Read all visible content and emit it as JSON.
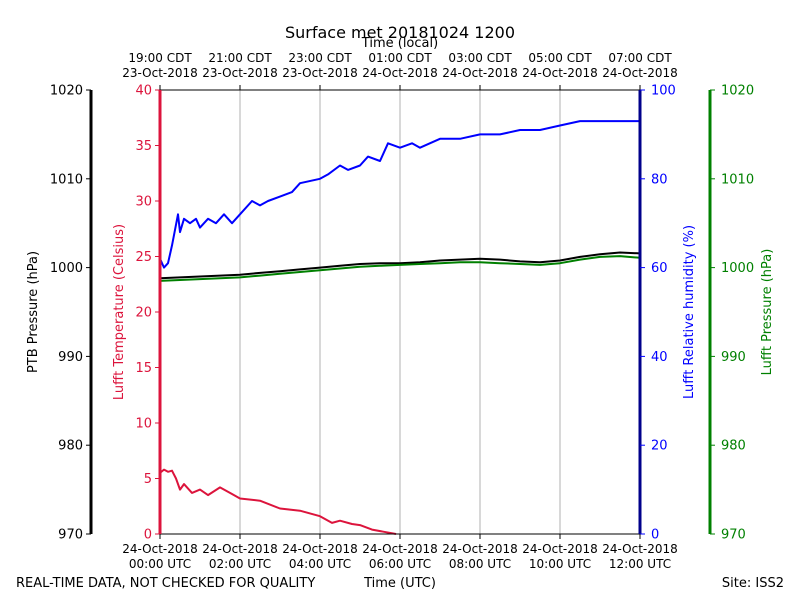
{
  "colors": {
    "ptb": "#000000",
    "temperature": "#dc143c",
    "humidity": "#0000ff",
    "lufft_pressure": "#008000",
    "grid": "#b0b0b0"
  },
  "chart_data": {
    "type": "line",
    "title": "Surface met 20181024 1200",
    "x_top_label": "Time (local)",
    "x_bottom_label": "Time (UTC)",
    "footer_left": "REAL-TIME DATA, NOT CHECKED FOR QUALITY",
    "footer_right": "Site: ISS2",
    "x_range_hours": [
      0,
      12
    ],
    "x_grid_hours": [
      0,
      2,
      4,
      6,
      8,
      10,
      12
    ],
    "x_ticks_utc": [
      {
        "h": 0,
        "date": "24-Oct-2018",
        "time": "00:00 UTC"
      },
      {
        "h": 2,
        "date": "24-Oct-2018",
        "time": "02:00 UTC"
      },
      {
        "h": 4,
        "date": "24-Oct-2018",
        "time": "04:00 UTC"
      },
      {
        "h": 6,
        "date": "24-Oct-2018",
        "time": "06:00 UTC"
      },
      {
        "h": 8,
        "date": "24-Oct-2018",
        "time": "08:00 UTC"
      },
      {
        "h": 10,
        "date": "24-Oct-2018",
        "time": "10:00 UTC"
      },
      {
        "h": 12,
        "date": "24-Oct-2018",
        "time": "12:00 UTC"
      }
    ],
    "x_ticks_local": [
      {
        "h": 0,
        "time": "19:00 CDT",
        "date": "23-Oct-2018"
      },
      {
        "h": 2,
        "time": "21:00 CDT",
        "date": "23-Oct-2018"
      },
      {
        "h": 4,
        "time": "23:00 CDT",
        "date": "23-Oct-2018"
      },
      {
        "h": 6,
        "time": "01:00 CDT",
        "date": "24-Oct-2018"
      },
      {
        "h": 8,
        "time": "03:00 CDT",
        "date": "24-Oct-2018"
      },
      {
        "h": 10,
        "time": "05:00 CDT",
        "date": "24-Oct-2018"
      },
      {
        "h": 12,
        "time": "07:00 CDT",
        "date": "24-Oct-2018"
      }
    ],
    "axes": {
      "ptb_pressure": {
        "label": "PTB Pressure (hPa)",
        "ylim": [
          970,
          1020
        ],
        "ticks": [
          970,
          980,
          990,
          1000,
          1010,
          1020
        ]
      },
      "temperature": {
        "label": "Lufft Temperature (Celsius)",
        "ylim": [
          0,
          40
        ],
        "ticks": [
          0,
          5,
          10,
          15,
          20,
          25,
          30,
          35,
          40
        ]
      },
      "humidity": {
        "label": "Lufft Relative humidity (%)",
        "ylim": [
          0,
          100
        ],
        "ticks": [
          0,
          20,
          40,
          60,
          80,
          100
        ]
      },
      "lufft_pressure": {
        "label": "Lufft Pressure (hPa)",
        "ylim": [
          970,
          1020
        ],
        "ticks": [
          970,
          980,
          990,
          1000,
          1010,
          1020
        ]
      }
    },
    "series": [
      {
        "name": "PTB Pressure",
        "axis": "ptb_pressure",
        "x": [
          0,
          0.5,
          1,
          1.5,
          2,
          2.5,
          3,
          3.5,
          4,
          4.5,
          5,
          5.5,
          6,
          6.5,
          7,
          7.5,
          8,
          8.5,
          9,
          9.5,
          10,
          10.5,
          11,
          11.5,
          12
        ],
        "y": [
          998.8,
          998.9,
          999.0,
          999.1,
          999.2,
          999.4,
          999.6,
          999.8,
          1000.0,
          1000.2,
          1000.4,
          1000.5,
          1000.5,
          1000.6,
          1000.8,
          1000.9,
          1001.0,
          1000.9,
          1000.7,
          1000.6,
          1000.8,
          1001.2,
          1001.5,
          1001.7,
          1001.6
        ]
      },
      {
        "name": "Lufft Pressure",
        "axis": "lufft_pressure",
        "x": [
          0,
          0.5,
          1,
          1.5,
          2,
          2.5,
          3,
          3.5,
          4,
          4.5,
          5,
          5.5,
          6,
          6.5,
          7,
          7.5,
          8,
          8.5,
          9,
          9.5,
          10,
          10.5,
          11,
          11.5,
          12
        ],
        "y": [
          998.5,
          998.6,
          998.7,
          998.8,
          998.9,
          999.1,
          999.3,
          999.5,
          999.7,
          999.9,
          1000.1,
          1000.2,
          1000.3,
          1000.4,
          1000.5,
          1000.6,
          1000.6,
          1000.5,
          1000.4,
          1000.3,
          1000.5,
          1000.9,
          1001.2,
          1001.3,
          1001.1
        ]
      },
      {
        "name": "Lufft Relative humidity",
        "axis": "humidity",
        "x": [
          0,
          0.1,
          0.2,
          0.3,
          0.45,
          0.5,
          0.6,
          0.75,
          0.9,
          1.0,
          1.2,
          1.4,
          1.6,
          1.8,
          2.0,
          2.3,
          2.5,
          2.7,
          3.0,
          3.3,
          3.5,
          4.0,
          4.2,
          4.5,
          4.7,
          5.0,
          5.2,
          5.5,
          5.7,
          6.0,
          6.3,
          6.5,
          7.0,
          7.5,
          8.0,
          8.5,
          9.0,
          9.5,
          10.0,
          10.5,
          11.0,
          11.5,
          12.0
        ],
        "y": [
          62,
          60,
          61,
          65,
          72,
          68,
          71,
          70,
          71,
          69,
          71,
          70,
          72,
          70,
          72,
          75,
          74,
          75,
          76,
          77,
          79,
          80,
          81,
          83,
          82,
          83,
          85,
          84,
          88,
          87,
          88,
          87,
          89,
          89,
          90,
          90,
          91,
          91,
          92,
          93,
          93,
          93,
          93
        ]
      },
      {
        "name": "Lufft Temperature",
        "axis": "temperature",
        "x": [
          0,
          0.1,
          0.2,
          0.3,
          0.4,
          0.5,
          0.6,
          0.8,
          1.0,
          1.2,
          1.5,
          1.8,
          2.0,
          2.5,
          3.0,
          3.5,
          4.0,
          4.3,
          4.5,
          4.8,
          5.0,
          5.3,
          5.6,
          5.9
        ],
        "y": [
          5.5,
          5.8,
          5.6,
          5.7,
          5.0,
          4.0,
          4.5,
          3.7,
          4.0,
          3.5,
          4.2,
          3.6,
          3.2,
          3.0,
          2.3,
          2.1,
          1.6,
          1.0,
          1.2,
          0.9,
          0.8,
          0.4,
          0.2,
          0.0
        ]
      }
    ]
  }
}
